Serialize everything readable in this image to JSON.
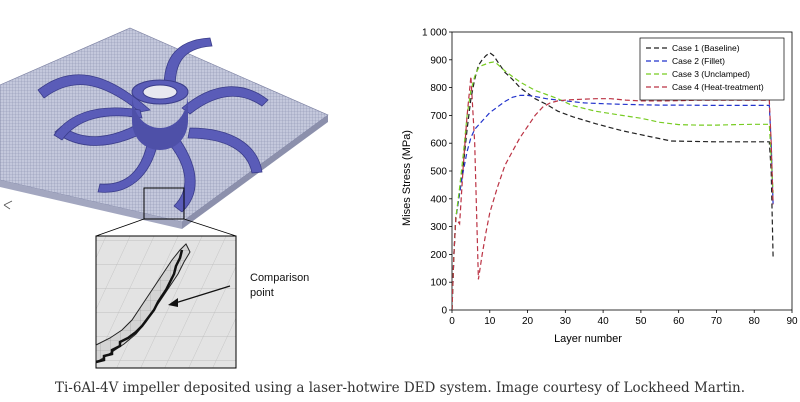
{
  "caption": "Ti-6Al-4V impeller deposited using a laser-hotwire DED system. Image courtesy of Lockheed Martin.",
  "inset": {
    "annotation_line1": "Comparison",
    "annotation_line2": "point"
  },
  "colors": {
    "mesh_plate": "#9aa0c0",
    "impeller": "#5a5cb8",
    "zoom_bg": "#dedede"
  },
  "chart_data": {
    "type": "line",
    "xlabel": "Layer number",
    "ylabel": "Mises Stress (MPa)",
    "xlim": [
      0,
      90
    ],
    "ylim": [
      0,
      1000
    ],
    "xticks": [
      0,
      10,
      20,
      30,
      40,
      50,
      60,
      70,
      80,
      90
    ],
    "yticks": [
      0,
      100,
      200,
      300,
      400,
      500,
      600,
      700,
      800,
      900,
      1000
    ],
    "ytick_labels": [
      "0",
      "100",
      "200",
      "300",
      "400",
      "500",
      "600",
      "700",
      "800",
      "900",
      "1 000"
    ],
    "legend_position": "top-right",
    "series": [
      {
        "name": "Case 1 (Baseline)",
        "color": "#222222",
        "points": [
          [
            0,
            0
          ],
          [
            0.5,
            200
          ],
          [
            1,
            330
          ],
          [
            2,
            420
          ],
          [
            3,
            520
          ],
          [
            4,
            650
          ],
          [
            5,
            760
          ],
          [
            6,
            830
          ],
          [
            7,
            880
          ],
          [
            8,
            900
          ],
          [
            9,
            915
          ],
          [
            10,
            925
          ],
          [
            11,
            915
          ],
          [
            12,
            895
          ],
          [
            13,
            875
          ],
          [
            14,
            855
          ],
          [
            16,
            830
          ],
          [
            18,
            800
          ],
          [
            20,
            780
          ],
          [
            22,
            760
          ],
          [
            25,
            740
          ],
          [
            28,
            715
          ],
          [
            32,
            695
          ],
          [
            38,
            670
          ],
          [
            45,
            645
          ],
          [
            52,
            625
          ],
          [
            58,
            608
          ],
          [
            65,
            606
          ],
          [
            70,
            605
          ],
          [
            75,
            605
          ],
          [
            80,
            605
          ],
          [
            84,
            605
          ],
          [
            84.5,
            500
          ],
          [
            85,
            190
          ]
        ]
      },
      {
        "name": "Case 2 (Fillet)",
        "color": "#2233cc",
        "points": [
          [
            0,
            0
          ],
          [
            0.5,
            200
          ],
          [
            1,
            330
          ],
          [
            2,
            420
          ],
          [
            3,
            500
          ],
          [
            4,
            570
          ],
          [
            5,
            620
          ],
          [
            6,
            650
          ],
          [
            8,
            680
          ],
          [
            10,
            710
          ],
          [
            12,
            730
          ],
          [
            14,
            750
          ],
          [
            16,
            765
          ],
          [
            18,
            772
          ],
          [
            20,
            772
          ],
          [
            22,
            768
          ],
          [
            25,
            760
          ],
          [
            30,
            752
          ],
          [
            35,
            745
          ],
          [
            40,
            742
          ],
          [
            45,
            740
          ],
          [
            50,
            738
          ],
          [
            55,
            737
          ],
          [
            60,
            737
          ],
          [
            70,
            736
          ],
          [
            80,
            736
          ],
          [
            84,
            736
          ],
          [
            84.5,
            600
          ],
          [
            85,
            380
          ]
        ]
      },
      {
        "name": "Case 3 (Unclamped)",
        "color": "#77cc22",
        "points": [
          [
            0,
            0
          ],
          [
            0.5,
            200
          ],
          [
            1,
            330
          ],
          [
            2,
            440
          ],
          [
            3,
            560
          ],
          [
            4,
            700
          ],
          [
            5,
            790
          ],
          [
            6,
            840
          ],
          [
            7,
            870
          ],
          [
            8,
            880
          ],
          [
            9,
            885
          ],
          [
            10,
            890
          ],
          [
            11,
            892
          ],
          [
            12,
            885
          ],
          [
            14,
            860
          ],
          [
            16,
            840
          ],
          [
            18,
            820
          ],
          [
            20,
            805
          ],
          [
            22,
            790
          ],
          [
            25,
            775
          ],
          [
            28,
            760
          ],
          [
            32,
            735
          ],
          [
            38,
            715
          ],
          [
            45,
            700
          ],
          [
            50,
            690
          ],
          [
            55,
            675
          ],
          [
            60,
            667
          ],
          [
            65,
            665
          ],
          [
            70,
            665
          ],
          [
            75,
            667
          ],
          [
            80,
            668
          ],
          [
            84,
            668
          ],
          [
            84.5,
            550
          ],
          [
            85,
            420
          ]
        ]
      },
      {
        "name": "Case 4 (Heat-treatment)",
        "color": "#bb3344",
        "points": [
          [
            0,
            0
          ],
          [
            0.5,
            200
          ],
          [
            1,
            330
          ],
          [
            2,
            310
          ],
          [
            3,
            520
          ],
          [
            4,
            700
          ],
          [
            5,
            840
          ],
          [
            6,
            600
          ],
          [
            7,
            110
          ],
          [
            8,
            200
          ],
          [
            9,
            280
          ],
          [
            10,
            350
          ],
          [
            12,
            440
          ],
          [
            14,
            520
          ],
          [
            16,
            570
          ],
          [
            18,
            620
          ],
          [
            20,
            660
          ],
          [
            22,
            700
          ],
          [
            24,
            730
          ],
          [
            26,
            745
          ],
          [
            28,
            752
          ],
          [
            30,
            755
          ],
          [
            34,
            758
          ],
          [
            38,
            760
          ],
          [
            42,
            760
          ],
          [
            46,
            755
          ],
          [
            50,
            752
          ],
          [
            55,
            752
          ],
          [
            60,
            753
          ],
          [
            65,
            755
          ],
          [
            70,
            755
          ],
          [
            75,
            755
          ],
          [
            80,
            755
          ],
          [
            84,
            755
          ],
          [
            84.5,
            600
          ],
          [
            85,
            380
          ]
        ]
      }
    ]
  }
}
